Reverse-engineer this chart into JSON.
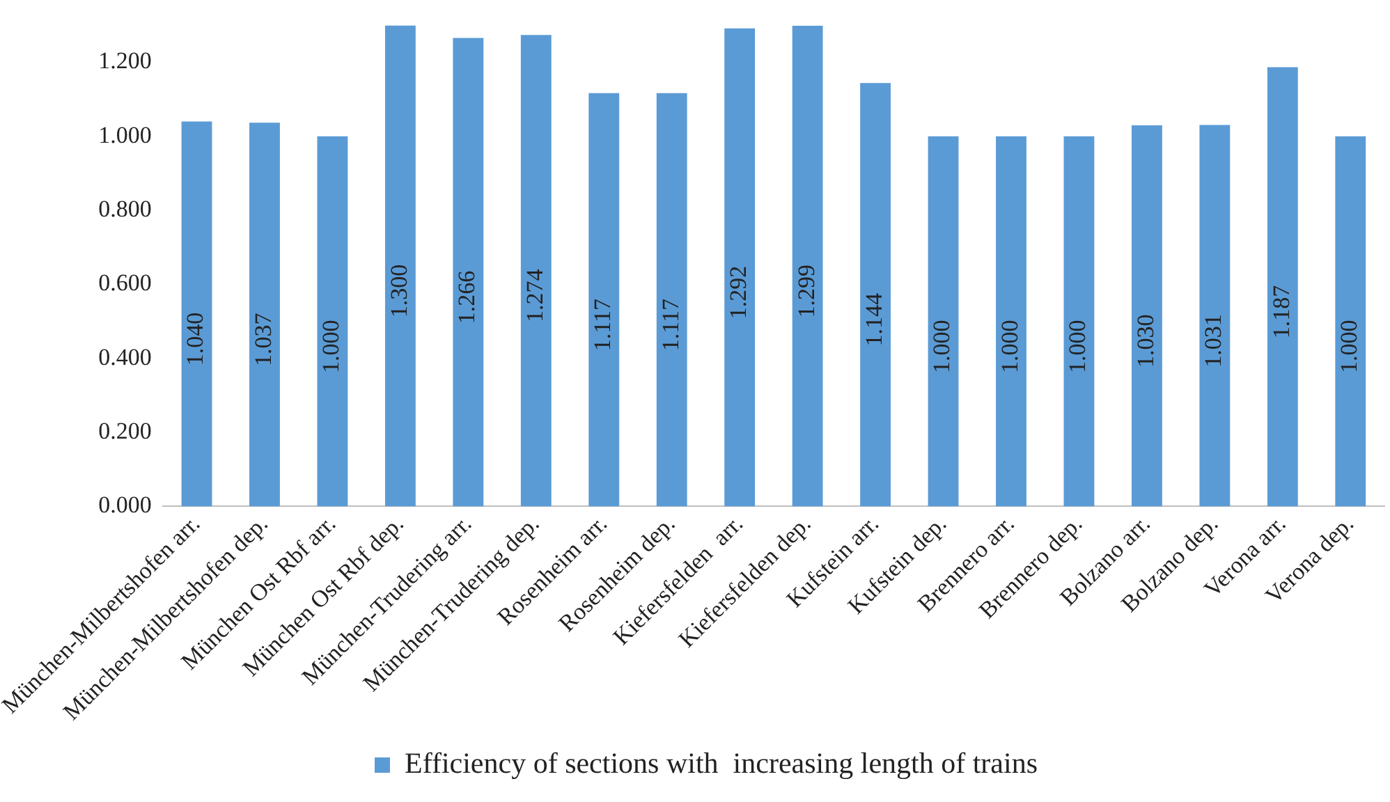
{
  "chart_data": {
    "type": "bar",
    "categories": [
      "München-Milbertshofen arr.",
      "München-Milbertshofen dep.",
      "München Ost Rbf arr.",
      "München Ost Rbf dep.",
      "München-Trudering arr.",
      "München-Trudering dep.",
      "Rosenheim arr.",
      "Rosenheim dep.",
      "Kiefersfelden  arr.",
      "Kiefersfelden dep.",
      "Kufstein arr.",
      "Kufstein dep.",
      "Brennero arr.",
      "Brennero dep.",
      "Bolzano arr.",
      "Bolzano dep.",
      "Verona arr.",
      "Verona dep."
    ],
    "series": [
      {
        "name": "Efficiency of sections with  increasing length of trains",
        "color": "#5b9bd5",
        "values": [
          1.04,
          1.037,
          1.0,
          1.3,
          1.266,
          1.274,
          1.117,
          1.117,
          1.292,
          1.299,
          1.144,
          1.0,
          1.0,
          1.0,
          1.03,
          1.031,
          1.187,
          1.0
        ],
        "value_labels": [
          "1.040",
          "1.037",
          "1.000",
          "1.300",
          "1.266",
          "1.274",
          "1.117",
          "1.117",
          "1.292",
          "1.299",
          "1.144",
          "1.000",
          "1.000",
          "1.000",
          "1.030",
          "1.031",
          "1.187",
          "1.000"
        ]
      }
    ],
    "ylim": [
      0,
      1.3
    ],
    "yticks": [
      {
        "value": 0,
        "label": "0.000"
      },
      {
        "value": 0.2,
        "label": "0.200"
      },
      {
        "value": 0.4,
        "label": "0.400"
      },
      {
        "value": 0.6,
        "label": "0.600"
      },
      {
        "value": 0.8,
        "label": "0.800"
      },
      {
        "value": 1,
        "label": "1.000"
      },
      {
        "value": 1.2,
        "label": "1.200"
      }
    ],
    "grid": false,
    "legend": "bottom"
  }
}
